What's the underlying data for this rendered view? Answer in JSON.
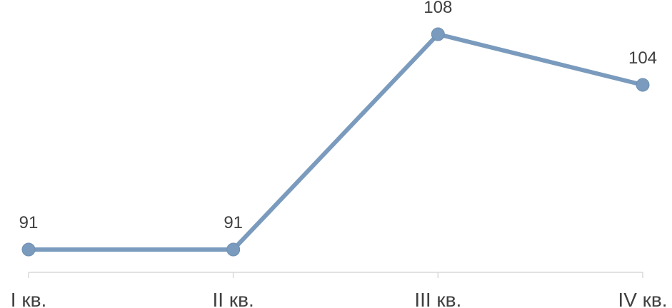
{
  "chart_data": {
    "type": "line",
    "categories": [
      "I кв.",
      "II кв.",
      "III кв.",
      "IV кв."
    ],
    "series": [
      {
        "values": [
          91,
          91,
          108,
          104
        ]
      }
    ],
    "data_labels": [
      "91",
      "91",
      "108",
      "104"
    ],
    "ylim": [
      91,
      108
    ],
    "grid": false,
    "legend": "none",
    "colors": {
      "line": "#7a9bbd",
      "marker": "#7a9bbd",
      "axis": "#d9d9d9",
      "text": "#404040"
    }
  }
}
